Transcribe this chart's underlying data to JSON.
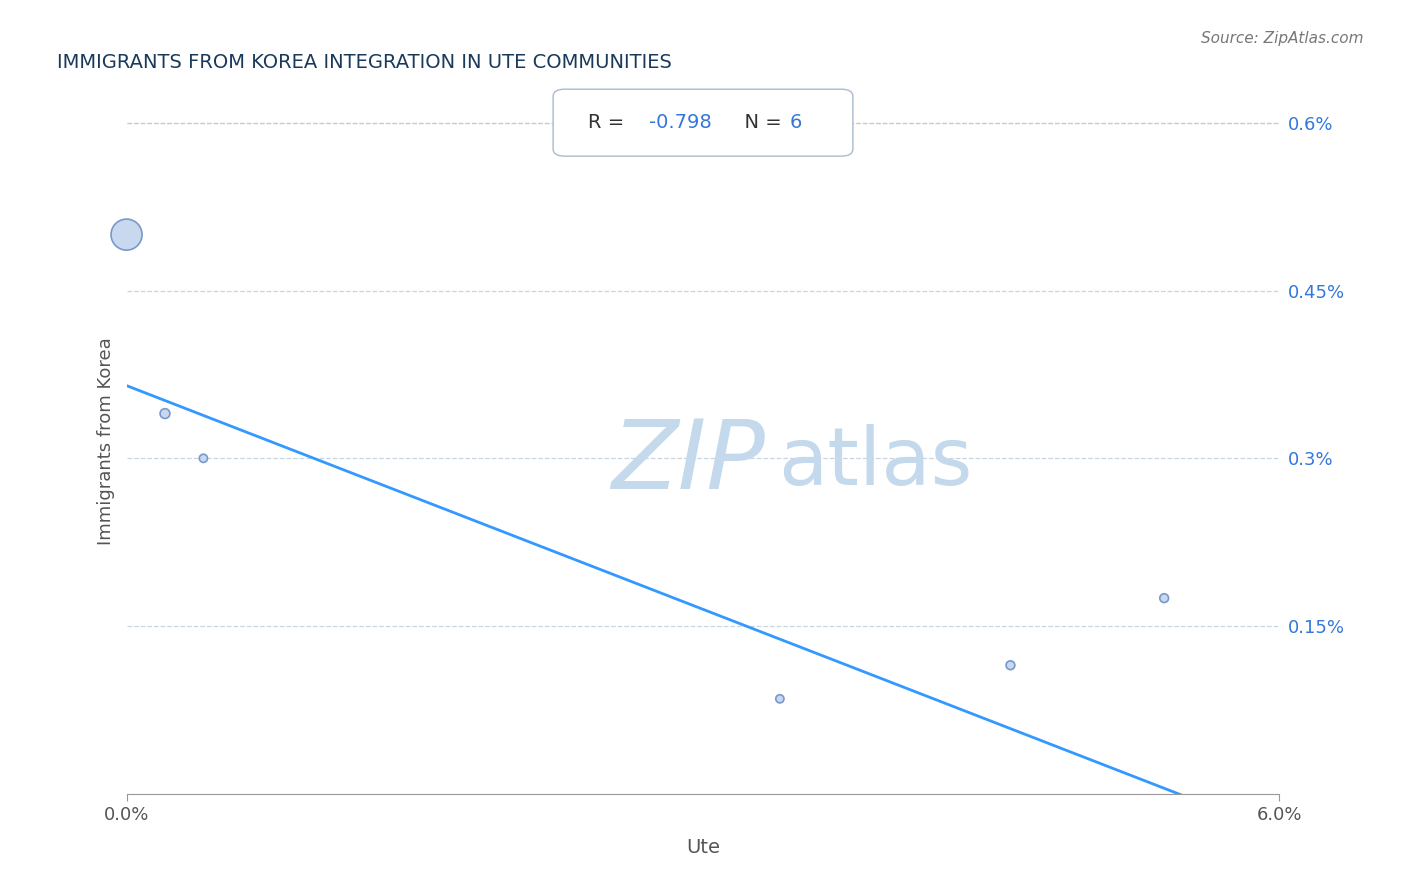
{
  "title": "IMMIGRANTS FROM KOREA INTEGRATION IN UTE COMMUNITIES",
  "source": "Source: ZipAtlas.com",
  "xlabel": "Ute",
  "ylabel": "Immigrants from Korea",
  "R": -0.798,
  "N": 6,
  "xlim": [
    0.0,
    0.06
  ],
  "ylim": [
    0.0,
    0.006
  ],
  "x_tick_labels": [
    "0.0%",
    "6.0%"
  ],
  "x_tick_vals": [
    0.0,
    0.06
  ],
  "y_tick_labels": [
    "0.6%",
    "0.45%",
    "0.3%",
    "0.15%"
  ],
  "y_tick_vals": [
    0.006,
    0.0045,
    0.003,
    0.0015
  ],
  "scatter_x": [
    0.002,
    0.004,
    0.0,
    0.034,
    0.046,
    0.054
  ],
  "scatter_y": [
    0.0034,
    0.003,
    0.005,
    0.00085,
    0.00115,
    0.00175
  ],
  "scatter_sizes": [
    50,
    35,
    500,
    35,
    40,
    40
  ],
  "scatter_color": "#c8d8ee",
  "scatter_edgecolor": "#7799cc",
  "line_color": "#3399ff",
  "line_x_start": 0.0,
  "line_x_end": 0.06,
  "line_y_start": 0.00365,
  "line_y_end": -0.00035,
  "grid_color": "#bbccdd",
  "grid_linestyle": "--",
  "title_color": "#1a3a5c",
  "source_color": "#777777",
  "watermark_zip": "ZIP",
  "watermark_atlas": "atlas",
  "watermark_color": "#c5d9ed",
  "annotation_color": "#3377dd",
  "box_facecolor": "#ffffff",
  "box_edgecolor": "#aabbcc",
  "r_label_color": "#333333",
  "n_label_color": "#333333"
}
